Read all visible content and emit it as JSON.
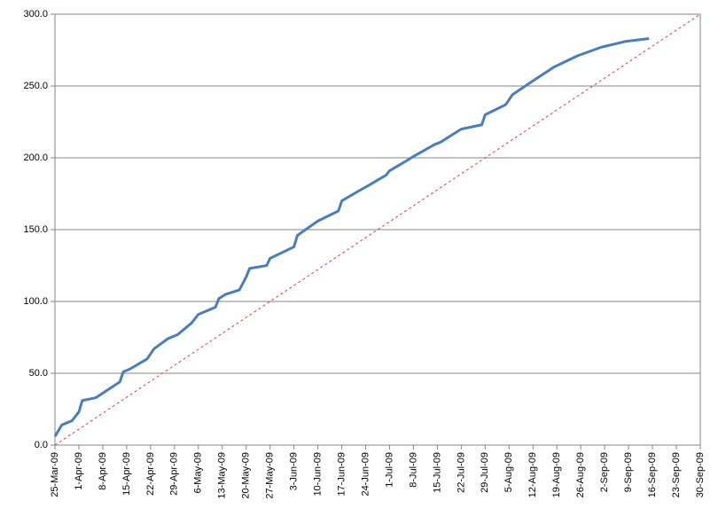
{
  "chart_data": {
    "type": "line",
    "xlim": [
      "2009-03-25",
      "2009-09-30"
    ],
    "ylim": [
      0,
      300
    ],
    "yticks": [
      {
        "value": 0,
        "label": "0.0"
      },
      {
        "value": 50,
        "label": "50.0"
      },
      {
        "value": 100,
        "label": "100.0"
      },
      {
        "value": 150,
        "label": "150.0"
      },
      {
        "value": 200,
        "label": "200.0"
      },
      {
        "value": 250,
        "label": "250.0"
      },
      {
        "value": 300,
        "label": "300.0"
      }
    ],
    "xticks": [
      {
        "value": "2009-03-25",
        "label": "25-Mar-09"
      },
      {
        "value": "2009-04-01",
        "label": "1-Apr-09"
      },
      {
        "value": "2009-04-08",
        "label": "8-Apr-09"
      },
      {
        "value": "2009-04-15",
        "label": "15-Apr-09"
      },
      {
        "value": "2009-04-22",
        "label": "22-Apr-09"
      },
      {
        "value": "2009-04-29",
        "label": "29-Apr-09"
      },
      {
        "value": "2009-05-06",
        "label": "6-May-09"
      },
      {
        "value": "2009-05-13",
        "label": "13-May-09"
      },
      {
        "value": "2009-05-20",
        "label": "20-May-09"
      },
      {
        "value": "2009-05-27",
        "label": "27-May-09"
      },
      {
        "value": "2009-06-03",
        "label": "3-Jun-09"
      },
      {
        "value": "2009-06-10",
        "label": "10-Jun-09"
      },
      {
        "value": "2009-06-17",
        "label": "17-Jun-09"
      },
      {
        "value": "2009-06-24",
        "label": "24-Jun-09"
      },
      {
        "value": "2009-07-01",
        "label": "1-Jul-09"
      },
      {
        "value": "2009-07-08",
        "label": "8-Jul-09"
      },
      {
        "value": "2009-07-15",
        "label": "15-Jul-09"
      },
      {
        "value": "2009-07-22",
        "label": "22-Jul-09"
      },
      {
        "value": "2009-07-29",
        "label": "29-Jul-09"
      },
      {
        "value": "2009-08-05",
        "label": "5-Aug-09"
      },
      {
        "value": "2009-08-12",
        "label": "12-Aug-09"
      },
      {
        "value": "2009-08-19",
        "label": "19-Aug-09"
      },
      {
        "value": "2009-08-26",
        "label": "26-Aug-09"
      },
      {
        "value": "2009-09-02",
        "label": "2-Sep-09"
      },
      {
        "value": "2009-09-09",
        "label": "9-Sep-09"
      },
      {
        "value": "2009-09-16",
        "label": "16-Sep-09"
      },
      {
        "value": "2009-09-23",
        "label": "23-Sep-09"
      },
      {
        "value": "2009-09-30",
        "label": "30-Sep-09"
      }
    ],
    "grid": true,
    "series": [
      {
        "color": "#4a7ebb",
        "dash": false,
        "x": [
          "2009-03-25",
          "2009-03-27",
          "2009-03-30",
          "2009-04-01",
          "2009-04-02",
          "2009-04-06",
          "2009-04-13",
          "2009-04-14",
          "2009-04-16",
          "2009-04-21",
          "2009-04-23",
          "2009-04-27",
          "2009-04-30",
          "2009-05-04",
          "2009-05-06",
          "2009-05-11",
          "2009-05-12",
          "2009-05-14",
          "2009-05-18",
          "2009-05-20",
          "2009-05-21",
          "2009-05-26",
          "2009-05-27",
          "2009-06-03",
          "2009-06-04",
          "2009-06-10",
          "2009-06-16",
          "2009-06-17",
          "2009-06-22",
          "2009-06-25",
          "2009-06-30",
          "2009-07-01",
          "2009-07-06",
          "2009-07-08",
          "2009-07-14",
          "2009-07-16",
          "2009-07-22",
          "2009-07-28",
          "2009-07-29",
          "2009-08-04",
          "2009-08-06",
          "2009-08-11",
          "2009-08-18",
          "2009-08-25",
          "2009-09-01",
          "2009-09-08",
          "2009-09-15"
        ],
        "values": [
          6,
          14,
          17,
          23,
          31,
          33,
          44,
          51,
          53,
          60,
          67,
          74,
          77,
          85,
          91,
          96,
          102,
          105,
          108,
          117,
          123,
          125,
          130,
          138,
          146,
          156,
          163,
          170,
          177,
          181,
          188,
          191,
          198,
          201,
          209,
          211,
          220,
          223,
          230,
          237,
          244,
          252,
          263,
          271,
          277,
          281,
          283
        ]
      },
      {
        "color": "#e0403c",
        "dash": true,
        "x": [
          "2009-03-25",
          "2009-09-30"
        ],
        "values": [
          0,
          300
        ]
      }
    ]
  }
}
